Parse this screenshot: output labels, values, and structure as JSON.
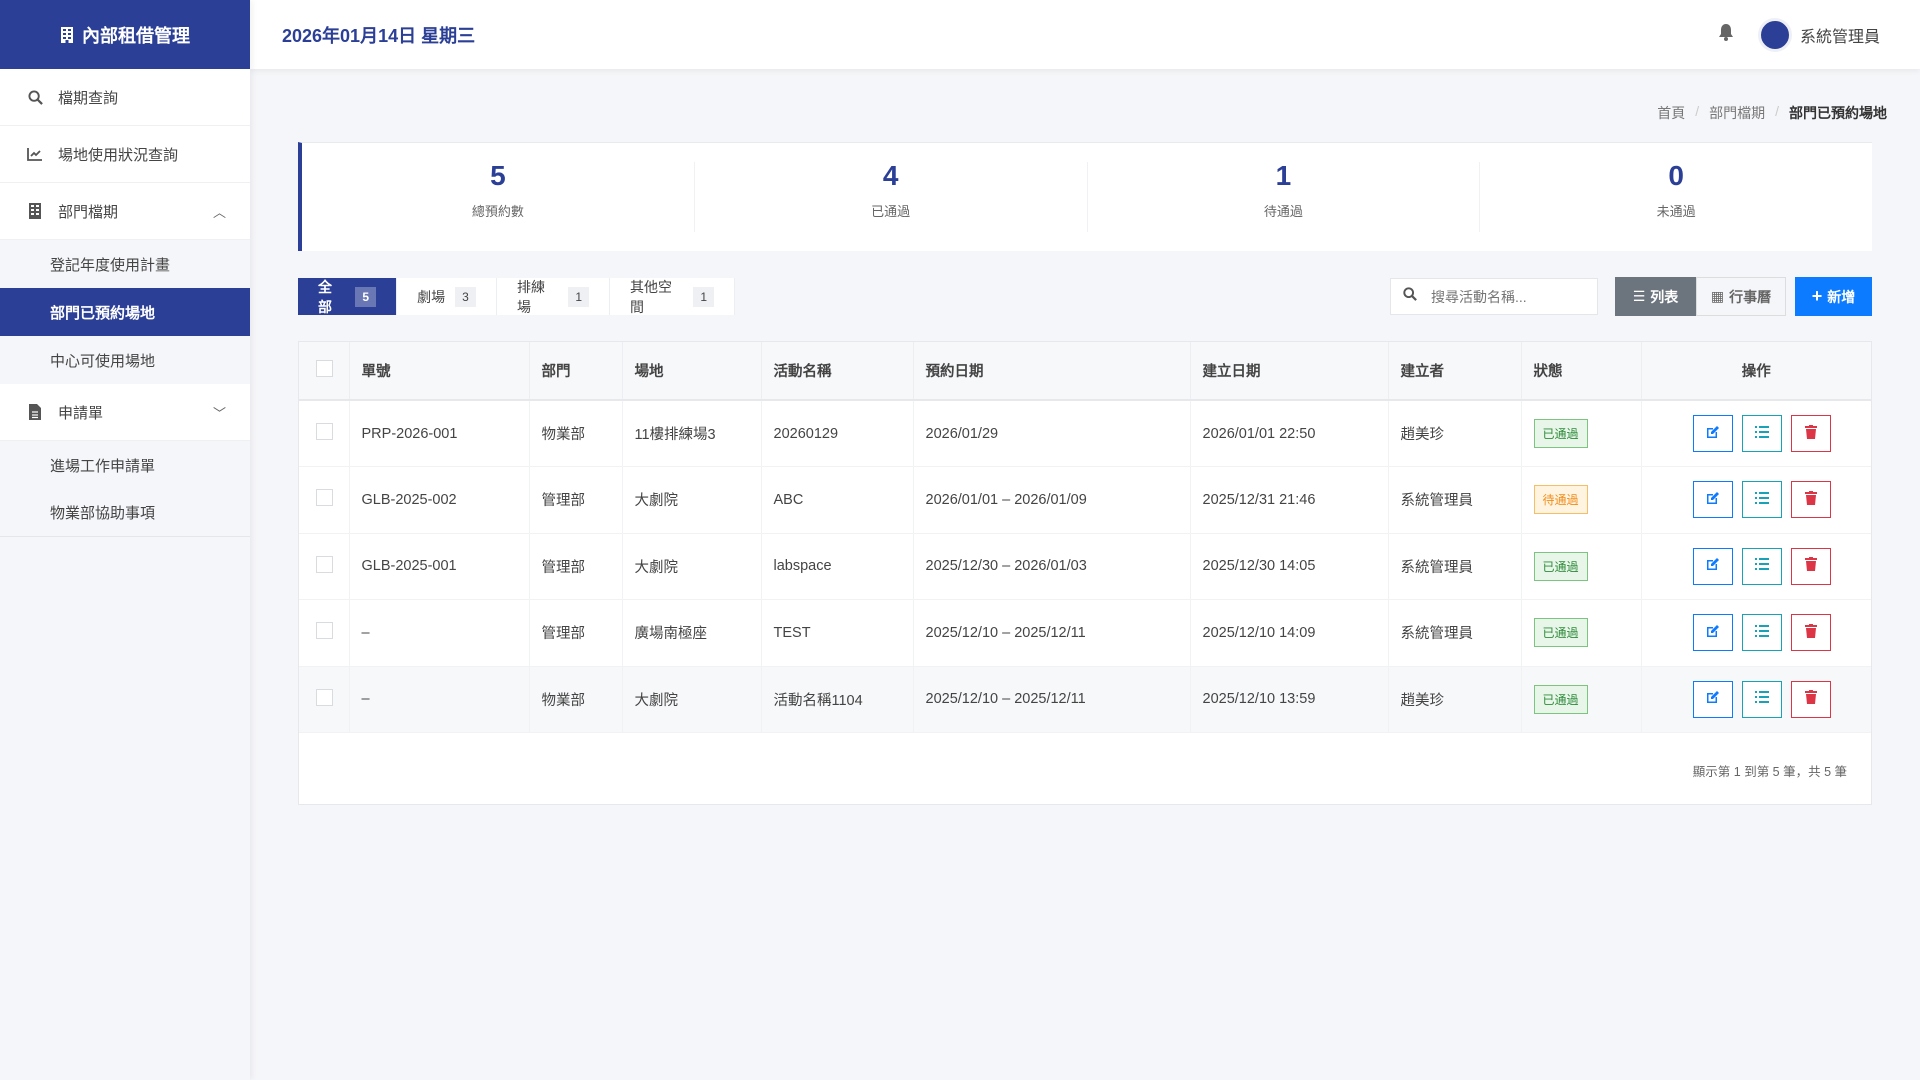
{
  "app": {
    "title": "內部租借管理",
    "date": "2026年01月14日  星期三",
    "user": "系統管理員"
  },
  "sidebar": {
    "items": [
      {
        "label": "檔期查詢",
        "icon": "search-icon"
      },
      {
        "label": "場地使用狀況查詢",
        "icon": "chart-line-icon"
      },
      {
        "label": "部門檔期",
        "icon": "building-icon",
        "sub": [
          "登記年度使用計畫",
          "部門已預約場地",
          "中心可使用場地"
        ]
      },
      {
        "label": "申請單",
        "icon": "file-icon",
        "sub": [
          "進場工作申請單",
          "物業部協助事項"
        ]
      }
    ]
  },
  "breadcrumb": [
    "首頁",
    "部門檔期",
    "部門已預約場地"
  ],
  "stats": [
    {
      "n": "5",
      "l": "總預約數"
    },
    {
      "n": "4",
      "l": "已通過"
    },
    {
      "n": "1",
      "l": "待通過"
    },
    {
      "n": "0",
      "l": "未通過"
    }
  ],
  "tabs": [
    {
      "label": "全部",
      "count": "5"
    },
    {
      "label": "劇場",
      "count": "3"
    },
    {
      "label": "排練場",
      "count": "1"
    },
    {
      "label": "其他空間",
      "count": "1"
    }
  ],
  "search": {
    "placeholder": "搜尋活動名稱..."
  },
  "toolbar": {
    "list": "列表",
    "calendar": "行事曆",
    "add": "新增"
  },
  "table": {
    "headers": [
      "單號",
      "部門",
      "場地",
      "活動名稱",
      "預約日期",
      "建立日期",
      "建立者",
      "狀態",
      "操作"
    ],
    "rows": [
      [
        "PRP-2026-001",
        "物業部",
        "11樓排練場3",
        "20260129",
        "2026/01/29",
        "2026/01/01 22:50",
        "趙美珍",
        "已通過"
      ],
      [
        "GLB-2025-002",
        "管理部",
        "大劇院",
        "ABC",
        "2026/01/01 – 2026/01/09",
        "2025/12/31 21:46",
        "系統管理員",
        "待通過"
      ],
      [
        "GLB-2025-001",
        "管理部",
        "大劇院",
        "labspace",
        "2025/12/30 – 2026/01/03",
        "2025/12/30 14:05",
        "系統管理員",
        "已通過"
      ],
      [
        "–",
        "管理部",
        "廣場南極座",
        "TEST",
        "2025/12/10 – 2025/12/11",
        "2025/12/10 14:09",
        "系統管理員",
        "已通過"
      ],
      [
        "–",
        "物業部",
        "大劇院",
        "活動名稱1104",
        "2025/12/10 – 2025/12/11",
        "2025/12/10 13:59",
        "趙美珍",
        "已通過"
      ]
    ]
  },
  "pagination": "顯示第 1 到第 5 筆，共 5 筆",
  "colors": {
    "primary": "#2b3f96",
    "add": "#0d7bff",
    "approved": "#2e8b3a",
    "pending": "#f08c1a",
    "danger": "#dc3545"
  }
}
